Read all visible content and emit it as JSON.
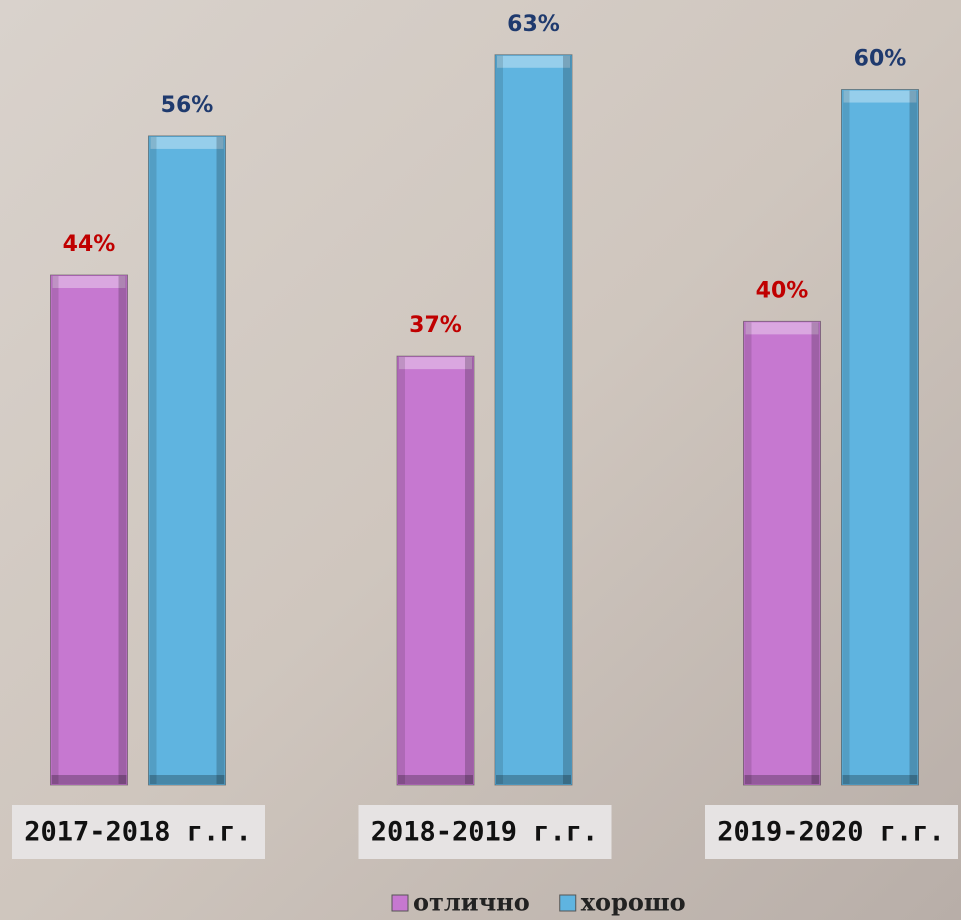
{
  "chart_data": {
    "type": "bar",
    "categories": [
      "2017-2018 г.г.",
      "2018-2019 г.г.",
      "2019-2020 г.г."
    ],
    "series": [
      {
        "name": "отлично",
        "color": "#c678d0",
        "label_color": "#c00000",
        "values": [
          44,
          37,
          40
        ],
        "value_labels": [
          "44%",
          "37%",
          "40%"
        ]
      },
      {
        "name": "хорошо",
        "color": "#5fb4e0",
        "label_color": "#1f3a6e",
        "values": [
          56,
          63,
          60
        ],
        "value_labels": [
          "56%",
          "63%",
          "60%"
        ]
      }
    ],
    "ylim": [
      0,
      66
    ],
    "legend": "bottom"
  }
}
